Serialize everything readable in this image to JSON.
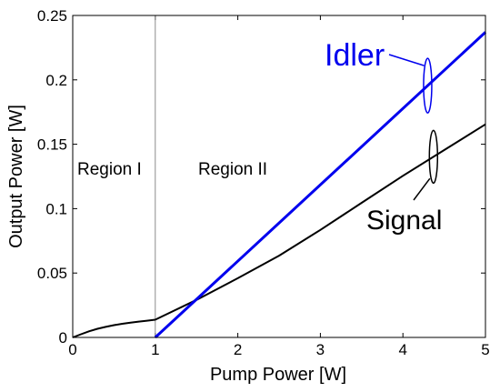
{
  "chart_data": {
    "type": "line",
    "xlabel": "Pump Power [W]",
    "ylabel": "Output Power [W]",
    "xlim": [
      0,
      5
    ],
    "ylim": [
      0,
      0.25
    ],
    "xticks": [
      "0",
      "1",
      "2",
      "3",
      "4",
      "5"
    ],
    "yticks": [
      "0",
      "0.05",
      "0.1",
      "0.15",
      "0.2",
      "0.25"
    ],
    "grid": false,
    "threshold_x": 1,
    "regions": [
      "Region I",
      "Region II"
    ],
    "series": [
      {
        "name": "Idler",
        "color": "#0000ee",
        "x": [
          1,
          5
        ],
        "y": [
          0,
          0.237
        ]
      },
      {
        "name": "Signal",
        "color": "#000000",
        "x": [
          0,
          0.1,
          0.2,
          0.3,
          0.4,
          0.5,
          0.6,
          0.7,
          0.8,
          0.9,
          1.0,
          1.5,
          2,
          2.5,
          3,
          3.5,
          4,
          4.5,
          5
        ],
        "y": [
          0,
          0.0025,
          0.0048,
          0.0067,
          0.0082,
          0.0095,
          0.0106,
          0.0115,
          0.0123,
          0.013,
          0.0138,
          0.0292,
          0.046,
          0.0635,
          0.0835,
          0.1045,
          0.1255,
          0.1455,
          0.1655
        ]
      }
    ]
  }
}
